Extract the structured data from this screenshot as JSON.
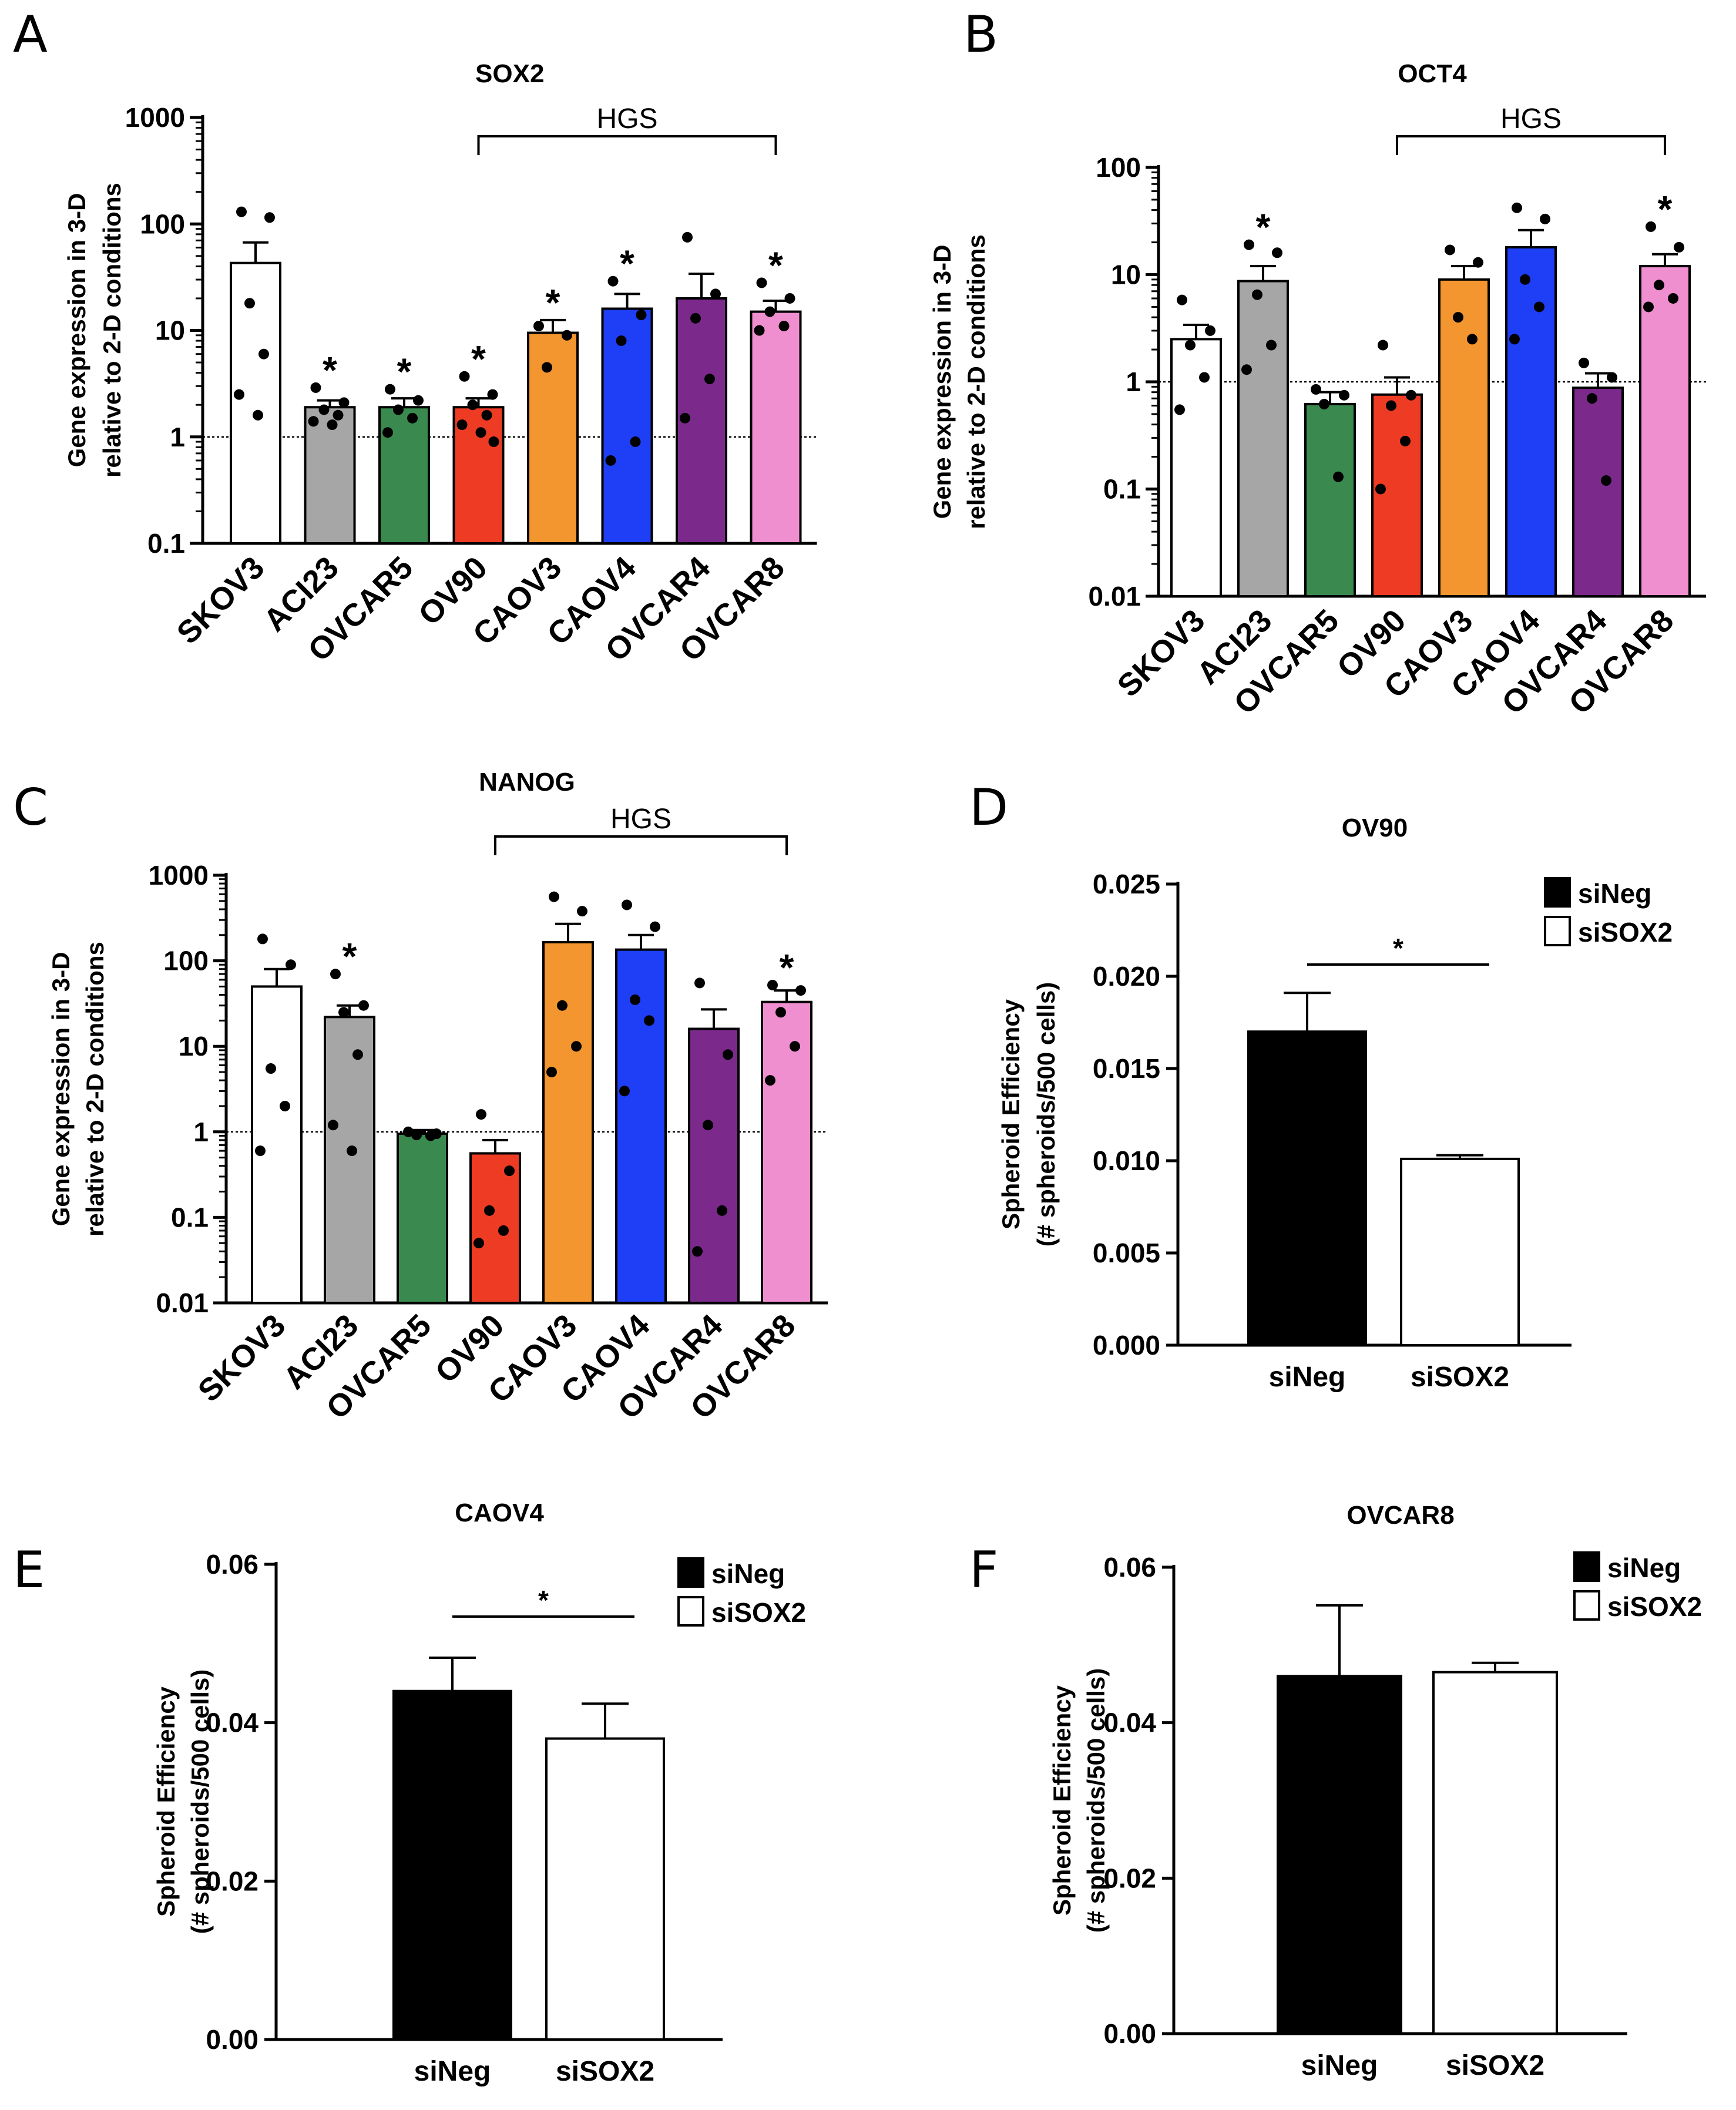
{
  "panels": [
    {
      "letter": "A"
    },
    {
      "letter": "B"
    },
    {
      "letter": "C"
    },
    {
      "letter": "D"
    },
    {
      "letter": "E"
    },
    {
      "letter": "F"
    }
  ],
  "chart_data": [
    {
      "panel": "A",
      "type": "bar",
      "scale": "log",
      "title": "SOX2",
      "ylabel": [
        "Gene expression in 3-D",
        "relative to 2-D conditions"
      ],
      "ylim": [
        0.1,
        1000
      ],
      "yticks": [
        "0.1",
        "1",
        "10",
        "100",
        "1000"
      ],
      "reference_line": 1,
      "bracket_label": "HGS",
      "bracket_range": [
        "OV90",
        "OVCAR8"
      ],
      "categories": [
        "SKOV3",
        "ACI23",
        "OVCAR5",
        "OV90",
        "CAOV3",
        "CAOV4",
        "OVCAR4",
        "OVCAR8"
      ],
      "colors": [
        "#ffffff",
        "#a6a6a6",
        "#3a8a4f",
        "#ee3b24",
        "#f3962f",
        "#1e3ff5",
        "#7b2a8c",
        "#ef8fd0"
      ],
      "values": [
        43,
        1.9,
        1.9,
        1.9,
        9.5,
        16,
        20,
        15
      ],
      "errors": [
        67,
        2.2,
        2.3,
        2.3,
        12.5,
        22,
        34,
        19
      ],
      "points": [
        [
          130,
          115,
          18,
          6,
          2.5,
          1.6
        ],
        [
          2.9,
          2.1,
          1.8,
          1.6,
          1.4,
          1.3
        ],
        [
          2.8,
          2.2,
          1.8,
          1.5,
          1.1
        ],
        [
          3.7,
          2.5,
          2.0,
          1.6,
          1.3,
          1.1,
          0.9
        ],
        [
          11,
          9,
          4.5
        ],
        [
          29,
          14,
          8,
          0.9,
          0.6
        ],
        [
          75,
          22,
          13,
          3.5,
          1.5
        ],
        [
          28,
          20,
          15,
          11,
          10
        ]
      ],
      "significance": [
        "",
        "*",
        "*",
        "*",
        "*",
        "*",
        "",
        "*"
      ]
    },
    {
      "panel": "B",
      "type": "bar",
      "scale": "log",
      "title": "OCT4",
      "ylabel": [
        "Gene expression in 3-D",
        "relative to 2-D conditions"
      ],
      "ylim": [
        0.01,
        100
      ],
      "yticks": [
        "0.01",
        "0.1",
        "1",
        "10",
        "100"
      ],
      "reference_line": 1,
      "bracket_label": "HGS",
      "bracket_range": [
        "OV90",
        "OVCAR8"
      ],
      "categories": [
        "SKOV3",
        "ACI23",
        "OVCAR5",
        "OV90",
        "CAOV3",
        "CAOV4",
        "OVCAR4",
        "OVCAR8"
      ],
      "colors": [
        "#ffffff",
        "#a6a6a6",
        "#3a8a4f",
        "#ee3b24",
        "#f3962f",
        "#1e3ff5",
        "#7b2a8c",
        "#ef8fd0"
      ],
      "values": [
        2.5,
        8.7,
        0.62,
        0.76,
        9,
        18,
        0.88,
        12
      ],
      "errors": [
        3.4,
        12,
        0.8,
        1.1,
        12,
        26,
        1.2,
        15.5
      ],
      "points": [
        [
          5.8,
          3,
          2.2,
          1.1,
          0.55
        ],
        [
          19,
          16,
          6.5,
          2.2,
          1.3
        ],
        [
          0.85,
          0.75,
          0.62,
          0.13
        ],
        [
          2.2,
          0.75,
          0.6,
          0.28,
          0.1
        ],
        [
          17,
          13,
          4,
          2.5
        ],
        [
          42,
          33,
          9,
          5,
          2.5
        ],
        [
          1.5,
          1.1,
          0.7,
          0.12
        ],
        [
          28,
          18,
          8,
          6,
          5
        ]
      ],
      "significance": [
        "",
        "*",
        "",
        "",
        "",
        "",
        "",
        "*"
      ]
    },
    {
      "panel": "C",
      "type": "bar",
      "scale": "log",
      "title": "NANOG",
      "ylabel": [
        "Gene expression in 3-D",
        "relative to 2-D conditions"
      ],
      "ylim": [
        0.01,
        1000
      ],
      "yticks": [
        "0.01",
        "0.1",
        "1",
        "10",
        "100",
        "1000"
      ],
      "reference_line": 1,
      "bracket_label": "HGS",
      "bracket_range": [
        "OV90",
        "OVCAR8"
      ],
      "categories": [
        "SKOV3",
        "ACI23",
        "OVCAR5",
        "OV90",
        "CAOV3",
        "CAOV4",
        "OVCAR4",
        "OVCAR8"
      ],
      "colors": [
        "#ffffff",
        "#a6a6a6",
        "#3a8a4f",
        "#ee3b24",
        "#f3962f",
        "#1e3ff5",
        "#7b2a8c",
        "#ef8fd0"
      ],
      "values": [
        50,
        22,
        0.95,
        0.56,
        165,
        135,
        16,
        33
      ],
      "errors": [
        80,
        30,
        1.05,
        0.8,
        270,
        200,
        27,
        45
      ],
      "points": [
        [
          180,
          90,
          5.5,
          2,
          0.6
        ],
        [
          70,
          30,
          25,
          8,
          1.2,
          0.6
        ],
        [
          1.0,
          0.95,
          0.92,
          0.9
        ],
        [
          1.6,
          0.35,
          0.12,
          0.07,
          0.05
        ],
        [
          560,
          380,
          30,
          10,
          5
        ],
        [
          450,
          250,
          35,
          20,
          3
        ],
        [
          55,
          8,
          1.2,
          0.12,
          0.04
        ],
        [
          52,
          45,
          25,
          10,
          4
        ]
      ],
      "significance": [
        "",
        "*",
        "",
        "",
        "",
        "",
        "",
        "*"
      ]
    },
    {
      "panel": "D",
      "type": "bar",
      "scale": "linear",
      "title": "OV90",
      "ylabel": [
        "Spheroid Efficiency",
        "(# spheroids/500 cells)"
      ],
      "ylim": [
        0,
        0.025
      ],
      "yticks": [
        "0.000",
        "0.005",
        "0.010",
        "0.015",
        "0.020",
        "0.025"
      ],
      "categories": [
        "siNeg",
        "siSOX2"
      ],
      "colors": [
        "#000000",
        "#ffffff"
      ],
      "values": [
        0.017,
        0.0101
      ],
      "errors": [
        0.0191,
        0.0103
      ],
      "legend": [
        "siNeg",
        "siSOX2"
      ],
      "significance": "*"
    },
    {
      "panel": "E",
      "type": "bar",
      "scale": "linear",
      "title": "CAOV4",
      "ylabel": [
        "Spheroid Efficiency",
        "(# spheroids/500 cells)"
      ],
      "ylim": [
        0,
        0.06
      ],
      "yticks": [
        "0.00",
        "0.02",
        "0.04",
        "0.06"
      ],
      "categories": [
        "siNeg",
        "siSOX2"
      ],
      "colors": [
        "#000000",
        "#ffffff"
      ],
      "values": [
        0.044,
        0.038
      ],
      "errors": [
        0.0482,
        0.0424
      ],
      "legend": [
        "siNeg",
        "siSOX2"
      ],
      "significance": "*"
    },
    {
      "panel": "F",
      "type": "bar",
      "scale": "linear",
      "title": "OVCAR8",
      "ylabel": [
        "Spheroid Efficiency",
        "(# spheroids/500 cells)"
      ],
      "ylim": [
        0,
        0.06
      ],
      "yticks": [
        "0.00",
        "0.02",
        "0.04",
        "0.06"
      ],
      "categories": [
        "siNeg",
        "siSOX2"
      ],
      "colors": [
        "#000000",
        "#ffffff"
      ],
      "values": [
        0.046,
        0.0465
      ],
      "errors": [
        0.0551,
        0.0477
      ],
      "legend": [
        "siNeg",
        "siSOX2"
      ],
      "significance": ""
    }
  ]
}
